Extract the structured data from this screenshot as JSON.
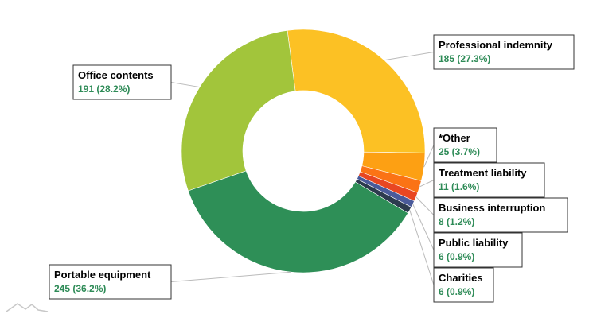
{
  "chart_data": {
    "type": "pie",
    "donut": true,
    "legend": "none",
    "slices": [
      {
        "name": "Professional indemnity",
        "value": 185,
        "percent": "27.3%",
        "color": "#fcc124"
      },
      {
        "name": "*Other",
        "value": 25,
        "percent": "3.7%",
        "color": "#fda013"
      },
      {
        "name": "Treatment liability",
        "value": 11,
        "percent": "1.6%",
        "color": "#fb7315"
      },
      {
        "name": "Business interruption",
        "value": 8,
        "percent": "1.2%",
        "color": "#e84622"
      },
      {
        "name": "Public liability",
        "value": 6,
        "percent": "0.9%",
        "color": "#4a5a9a"
      },
      {
        "name": "Charities",
        "value": 6,
        "percent": "0.9%",
        "color": "#2c3a4e"
      },
      {
        "name": "Portable equipment",
        "value": 245,
        "percent": "36.2%",
        "color": "#2e8f57"
      },
      {
        "name": "Office contents",
        "value": 191,
        "percent": "28.2%",
        "color": "#a2c53b"
      }
    ]
  }
}
